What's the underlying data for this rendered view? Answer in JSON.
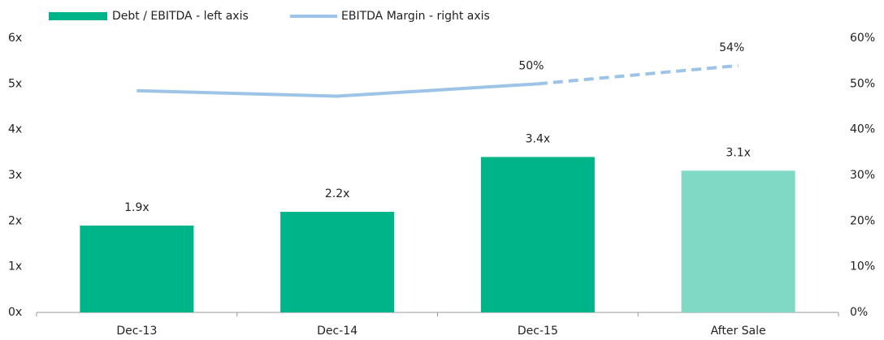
{
  "chart_data": {
    "type": "bar",
    "categories": [
      "Dec-13",
      "Dec-14",
      "Dec-15",
      "After Sale"
    ],
    "ylim": [
      0,
      6
    ],
    "yticks": [
      {
        "value": 0,
        "label": "0x"
      },
      {
        "value": 1,
        "label": "1x"
      },
      {
        "value": 2,
        "label": "2x"
      },
      {
        "value": 3,
        "label": "3x"
      },
      {
        "value": 4,
        "label": "4x"
      },
      {
        "value": 5,
        "label": "5x"
      },
      {
        "value": 6,
        "label": "6x"
      }
    ],
    "y2lim": [
      0,
      60
    ],
    "y2ticks": [
      {
        "value": 0,
        "label": "0%"
      },
      {
        "value": 10,
        "label": "10%"
      },
      {
        "value": 20,
        "label": "20%"
      },
      {
        "value": 30,
        "label": "30%"
      },
      {
        "value": 40,
        "label": "40%"
      },
      {
        "value": 50,
        "label": "50%"
      },
      {
        "value": 60,
        "label": "60%"
      }
    ],
    "legend": "top-left",
    "series": [
      {
        "name": "Debt / EBITDA - left axis",
        "type": "bar",
        "color": "#00b48a",
        "colors": [
          "#00b48a",
          "#00b48a",
          "#00b48a",
          "#80d9c5"
        ],
        "values": [
          1.9,
          2.2,
          3.4,
          3.1
        ],
        "value_labels": [
          "1.9x",
          "2.2x",
          "3.4x",
          "3.1x"
        ]
      },
      {
        "name": "EBITDA Margin - right axis",
        "type": "line",
        "axis": "y2",
        "color": "#9dc3e6",
        "values": [
          48.5,
          47.3,
          50,
          54
        ],
        "value_labels": [
          null,
          null,
          "50%",
          "54%"
        ],
        "dashed": [
          false,
          false,
          false,
          true
        ]
      }
    ]
  }
}
